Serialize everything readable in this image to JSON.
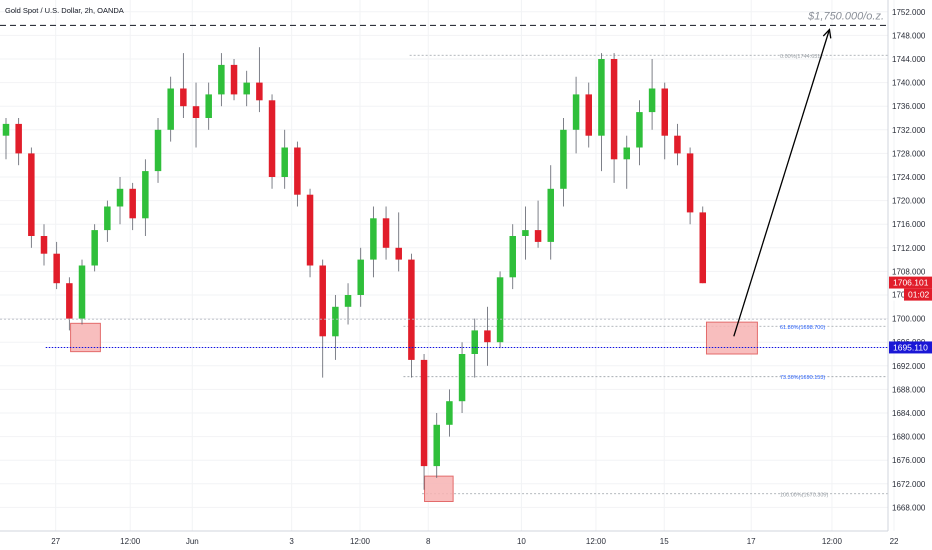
{
  "symbol_title": "Gold Spot / U.S. Dollar, 2h, OANDA",
  "colors": {
    "up": "#2fbf3a",
    "down": "#e11d2a",
    "grid": "#f2f3f5",
    "axis_text": "#2a2e39",
    "fib": "#9aa0a6",
    "fib_blue": "#2962ff",
    "support": "#1010e0",
    "price_badge": "#e11d2a",
    "support_badge": "#1a17d6",
    "zone_fill": "#f7b3b3",
    "zone_stroke": "#e36b6b"
  },
  "chart_data": {
    "type": "candlestick",
    "y_range": [
      1664,
      1754
    ],
    "x_range": [
      0,
      71
    ],
    "y_ticks": [
      "1668.000",
      "1672.000",
      "1676.000",
      "1680.000",
      "1684.000",
      "1688.000",
      "1692.000",
      "1696.000",
      "1700.000",
      "1704.000",
      "1708.000",
      "1712.000",
      "1716.000",
      "1720.000",
      "1724.000",
      "1728.000",
      "1732.000",
      "1736.000",
      "1740.000",
      "1744.000",
      "1748.000",
      "1752.000"
    ],
    "x_ticks": [
      {
        "i": 4.0,
        "label": "27"
      },
      {
        "i": 10.0,
        "label": "12:00"
      },
      {
        "i": 15.0,
        "label": "Jun"
      },
      {
        "i": 23.0,
        "label": "3"
      },
      {
        "i": 28.5,
        "label": "12:00"
      },
      {
        "i": 34.0,
        "label": "8"
      },
      {
        "i": 41.5,
        "label": "10"
      },
      {
        "i": 47.5,
        "label": "12:00"
      },
      {
        "i": 53.0,
        "label": "15"
      },
      {
        "i": 60.0,
        "label": "17"
      },
      {
        "i": 66.5,
        "label": "12:00"
      },
      {
        "i": 71.5,
        "label": "22"
      }
    ],
    "candles": [
      {
        "o": 1731,
        "h": 1734,
        "l": 1727,
        "c": 1733
      },
      {
        "o": 1733,
        "h": 1734,
        "l": 1726,
        "c": 1728
      },
      {
        "o": 1728,
        "h": 1729,
        "l": 1712,
        "c": 1714
      },
      {
        "o": 1714,
        "h": 1716,
        "l": 1709,
        "c": 1711
      },
      {
        "o": 1711,
        "h": 1713,
        "l": 1705,
        "c": 1706
      },
      {
        "o": 1706,
        "h": 1707,
        "l": 1698,
        "c": 1700
      },
      {
        "o": 1700,
        "h": 1710,
        "l": 1699,
        "c": 1709
      },
      {
        "o": 1709,
        "h": 1716,
        "l": 1708,
        "c": 1715
      },
      {
        "o": 1715,
        "h": 1720,
        "l": 1713,
        "c": 1719
      },
      {
        "o": 1719,
        "h": 1724,
        "l": 1716,
        "c": 1722
      },
      {
        "o": 1722,
        "h": 1723,
        "l": 1715,
        "c": 1717
      },
      {
        "o": 1717,
        "h": 1727,
        "l": 1714,
        "c": 1725
      },
      {
        "o": 1725,
        "h": 1734,
        "l": 1723,
        "c": 1732
      },
      {
        "o": 1732,
        "h": 1741,
        "l": 1730,
        "c": 1739
      },
      {
        "o": 1739,
        "h": 1745,
        "l": 1734,
        "c": 1736
      },
      {
        "o": 1736,
        "h": 1740,
        "l": 1729,
        "c": 1734
      },
      {
        "o": 1734,
        "h": 1740,
        "l": 1732,
        "c": 1738
      },
      {
        "o": 1738,
        "h": 1745,
        "l": 1736,
        "c": 1743
      },
      {
        "o": 1743,
        "h": 1744,
        "l": 1737,
        "c": 1738
      },
      {
        "o": 1738,
        "h": 1742,
        "l": 1736,
        "c": 1740
      },
      {
        "o": 1740,
        "h": 1746,
        "l": 1735,
        "c": 1737
      },
      {
        "o": 1737,
        "h": 1738,
        "l": 1722,
        "c": 1724
      },
      {
        "o": 1724,
        "h": 1732,
        "l": 1722,
        "c": 1729
      },
      {
        "o": 1729,
        "h": 1730,
        "l": 1719,
        "c": 1721
      },
      {
        "o": 1721,
        "h": 1722,
        "l": 1707,
        "c": 1709
      },
      {
        "o": 1709,
        "h": 1710,
        "l": 1690,
        "c": 1697
      },
      {
        "o": 1697,
        "h": 1704,
        "l": 1693,
        "c": 1702
      },
      {
        "o": 1702,
        "h": 1706,
        "l": 1699,
        "c": 1704
      },
      {
        "o": 1704,
        "h": 1712,
        "l": 1702,
        "c": 1710
      },
      {
        "o": 1710,
        "h": 1719,
        "l": 1707,
        "c": 1717
      },
      {
        "o": 1717,
        "h": 1719,
        "l": 1710,
        "c": 1712
      },
      {
        "o": 1712,
        "h": 1718,
        "l": 1708,
        "c": 1710
      },
      {
        "o": 1710,
        "h": 1711,
        "l": 1690,
        "c": 1693
      },
      {
        "o": 1693,
        "h": 1694,
        "l": 1671,
        "c": 1675
      },
      {
        "o": 1675,
        "h": 1684,
        "l": 1673,
        "c": 1682
      },
      {
        "o": 1682,
        "h": 1688,
        "l": 1680,
        "c": 1686
      },
      {
        "o": 1686,
        "h": 1696,
        "l": 1684,
        "c": 1694
      },
      {
        "o": 1694,
        "h": 1700,
        "l": 1690,
        "c": 1698
      },
      {
        "o": 1698,
        "h": 1702,
        "l": 1692,
        "c": 1696
      },
      {
        "o": 1696,
        "h": 1708,
        "l": 1695,
        "c": 1707
      },
      {
        "o": 1707,
        "h": 1716,
        "l": 1705,
        "c": 1714
      },
      {
        "o": 1714,
        "h": 1719,
        "l": 1710,
        "c": 1715
      },
      {
        "o": 1715,
        "h": 1720,
        "l": 1712,
        "c": 1713
      },
      {
        "o": 1713,
        "h": 1726,
        "l": 1710,
        "c": 1722
      },
      {
        "o": 1722,
        "h": 1734,
        "l": 1719,
        "c": 1732
      },
      {
        "o": 1732,
        "h": 1741,
        "l": 1728,
        "c": 1738
      },
      {
        "o": 1738,
        "h": 1740,
        "l": 1729,
        "c": 1731
      },
      {
        "o": 1731,
        "h": 1745,
        "l": 1725,
        "c": 1744
      },
      {
        "o": 1744,
        "h": 1745,
        "l": 1723,
        "c": 1727
      },
      {
        "o": 1727,
        "h": 1731,
        "l": 1722,
        "c": 1729
      },
      {
        "o": 1729,
        "h": 1737,
        "l": 1726,
        "c": 1735
      },
      {
        "o": 1735,
        "h": 1744,
        "l": 1732,
        "c": 1739
      },
      {
        "o": 1739,
        "h": 1740,
        "l": 1727,
        "c": 1731
      },
      {
        "o": 1731,
        "h": 1733,
        "l": 1726,
        "c": 1728
      },
      {
        "o": 1728,
        "h": 1729,
        "l": 1716,
        "c": 1718
      },
      {
        "o": 1718,
        "h": 1719,
        "l": 1706,
        "c": 1706
      }
    ],
    "candle_x_start": 0,
    "candle_x_step": 1.02,
    "fib_levels": [
      {
        "label": "0.00%(1744.631)",
        "price": 1744.631,
        "color": "gray",
        "x_from": 32.5
      },
      {
        "label": "61.80%(1698.700)",
        "price": 1698.7,
        "color": "blue",
        "x_from": 32.0
      },
      {
        "label": "73.30%(1690.153)",
        "price": 1690.153,
        "color": "blue",
        "x_from": 32.0
      },
      {
        "label": "100.00%(1670.309)",
        "price": 1670.309,
        "color": "gray",
        "x_from": 33.5
      }
    ],
    "ref_line_price": 1699.9,
    "target_line_price": 1749.7,
    "support_price": 1695.11,
    "target_label": "$1,750.000/o.z.",
    "current_price_label": "1706.101",
    "countdown_label": "01:02",
    "support_label": "1695.110",
    "hidden_axis_label": "1704.000",
    "zones": [
      {
        "x0": 5.2,
        "x1": 7.6,
        "p0": 1694.4,
        "p1": 1699.2
      },
      {
        "x0": 56.4,
        "x1": 60.5,
        "p0": 1694.0,
        "p1": 1699.4
      },
      {
        "x0": 33.7,
        "x1": 36.0,
        "p0": 1669.0,
        "p1": 1673.3
      }
    ],
    "arrow": {
      "x0": 58.6,
      "p0": 1697.0,
      "x1": 66.3,
      "p1": 1749.0
    }
  }
}
